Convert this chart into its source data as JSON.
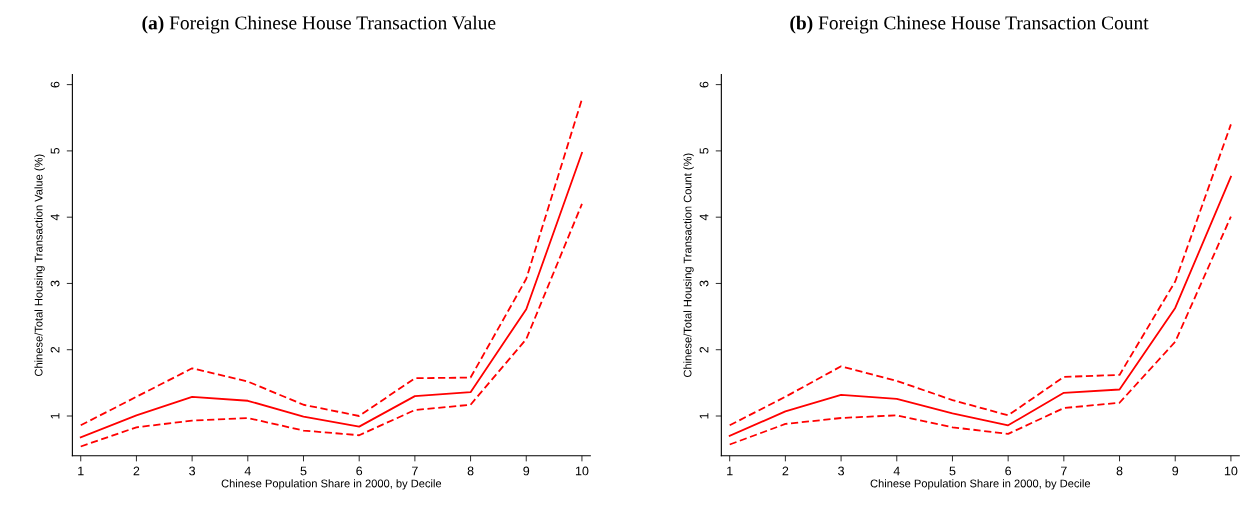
{
  "chart_data": [
    {
      "type": "line",
      "title": "(a) Foreign Chinese House Transaction Value",
      "xlabel": "Chinese Population Share in 2000, by Decile",
      "ylabel": "Chinese/Total Housing Transaction Value (%)",
      "x": [
        1,
        2,
        3,
        4,
        5,
        6,
        7,
        8,
        9,
        10
      ],
      "xlim": [
        0.85,
        10.15
      ],
      "xticks": [
        1,
        2,
        3,
        4,
        5,
        6,
        7,
        8,
        9,
        10
      ],
      "ylim": [
        0.4,
        6.15
      ],
      "yticks": [
        1,
        2,
        3,
        4,
        5,
        6
      ],
      "grid": false,
      "marker": "none",
      "series": [
        {
          "color": "#ff0000",
          "line_style": "solid",
          "values": [
            0.68,
            1.01,
            1.29,
            1.23,
            0.99,
            0.84,
            1.3,
            1.36,
            2.61,
            4.97
          ]
        },
        {
          "color": "#ff0000",
          "line_style": "dashed",
          "values": [
            0.86,
            1.29,
            1.72,
            1.52,
            1.17,
            1.0,
            1.57,
            1.58,
            3.07,
            5.78
          ]
        },
        {
          "color": "#ff0000",
          "line_style": "dashed",
          "values": [
            0.54,
            0.83,
            0.93,
            0.97,
            0.78,
            0.71,
            1.09,
            1.17,
            2.16,
            4.2
          ]
        }
      ]
    },
    {
      "type": "line",
      "title": "(b) Foreign Chinese House Transaction Count",
      "xlabel": "Chinese Population Share in 2000, by Decile",
      "ylabel": "Chinese/Total Housing Transaction Count (%)",
      "x": [
        1,
        2,
        3,
        4,
        5,
        6,
        7,
        8,
        9,
        10
      ],
      "xlim": [
        0.85,
        10.15
      ],
      "xticks": [
        1,
        2,
        3,
        4,
        5,
        6,
        7,
        8,
        9,
        10
      ],
      "ylim": [
        0.4,
        6.15
      ],
      "yticks": [
        1,
        2,
        3,
        4,
        5,
        6
      ],
      "grid": false,
      "marker": "none",
      "series": [
        {
          "color": "#ff0000",
          "line_style": "solid",
          "values": [
            0.7,
            1.07,
            1.32,
            1.26,
            1.04,
            0.86,
            1.35,
            1.4,
            2.63,
            4.61
          ]
        },
        {
          "color": "#ff0000",
          "line_style": "dashed",
          "values": [
            0.86,
            1.29,
            1.75,
            1.53,
            1.24,
            1.01,
            1.59,
            1.62,
            3.03,
            5.4
          ]
        },
        {
          "color": "#ff0000",
          "line_style": "dashed",
          "values": [
            0.57,
            0.88,
            0.97,
            1.01,
            0.83,
            0.73,
            1.12,
            1.2,
            2.12,
            4.01
          ]
        }
      ]
    }
  ]
}
